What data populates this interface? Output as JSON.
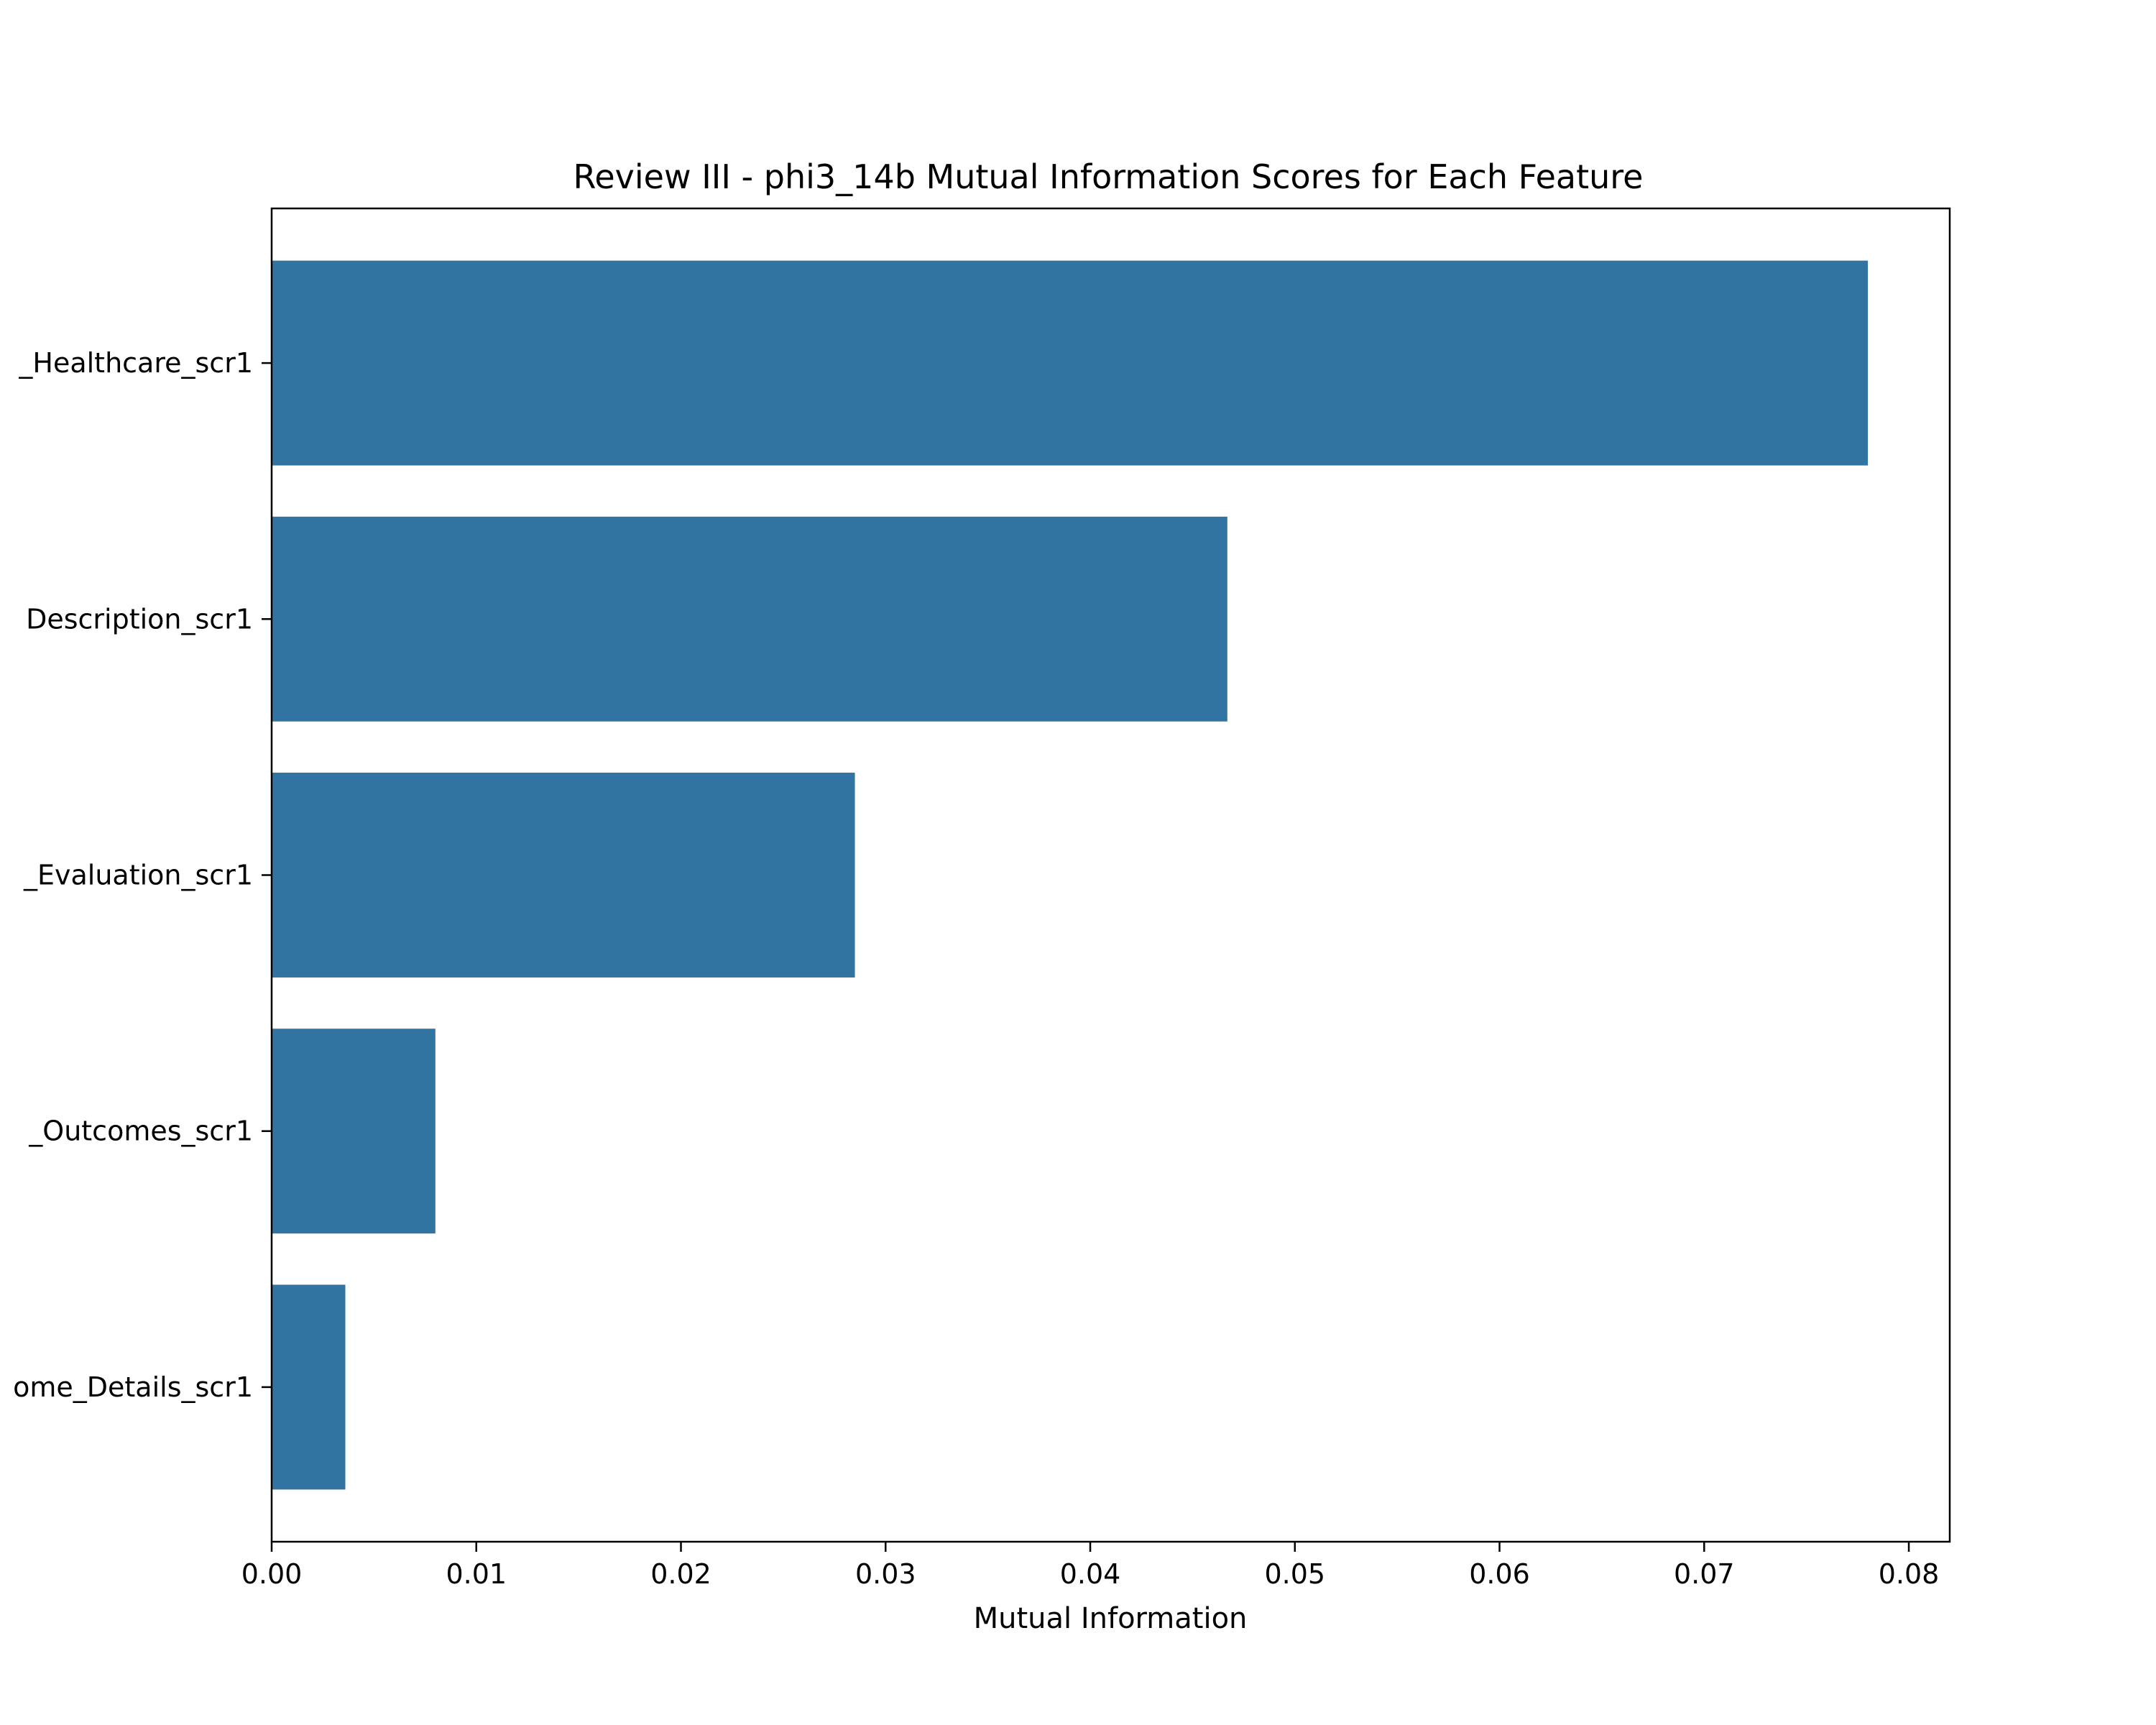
{
  "chart_data": {
    "type": "bar",
    "orientation": "horizontal",
    "title": "Review III - phi3_14b Mutual Information Scores for Each Feature",
    "xlabel": "Mutual Information",
    "ylabel": "",
    "categories": [
      "_Healthcare_scr1",
      "Description_scr1",
      "_Evaluation_scr1",
      "_Outcomes_scr1",
      "ome_Details_scr1"
    ],
    "values": [
      0.078,
      0.0467,
      0.0285,
      0.008,
      0.0036
    ],
    "xlim": [
      0,
      0.082
    ],
    "xticks": [
      0,
      0.01,
      0.02,
      0.03,
      0.04,
      0.05,
      0.06,
      0.07,
      0.08
    ],
    "xtick_labels": [
      "0.00",
      "0.01",
      "0.02",
      "0.03",
      "0.04",
      "0.05",
      "0.06",
      "0.07",
      "0.08"
    ],
    "grid": false,
    "legend": "none",
    "bar_color": "#3274a1"
  }
}
